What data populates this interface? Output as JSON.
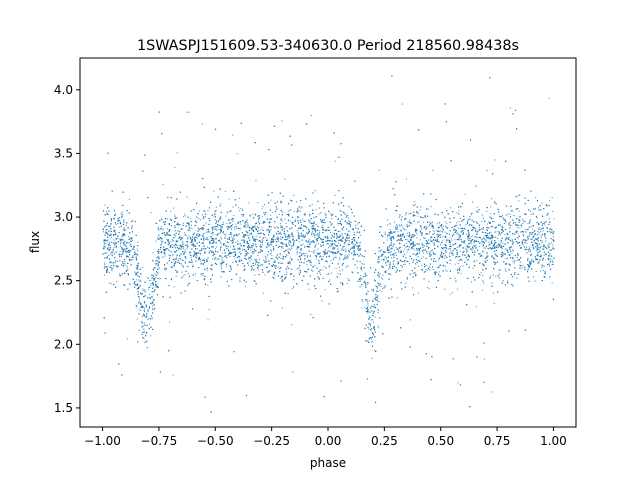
{
  "chart_data": {
    "type": "scatter",
    "title": "1SWASPJ151609.53-340630.0 Period 218560.98438s",
    "xlabel": "phase",
    "ylabel": "flux",
    "xlim": [
      -1.1,
      1.1
    ],
    "ylim": [
      1.35,
      4.25
    ],
    "xticks": [
      -1.0,
      -0.75,
      -0.5,
      -0.25,
      0.0,
      0.25,
      0.5,
      0.75,
      1.0
    ],
    "xtick_labels": [
      "−1.00",
      "−0.75",
      "−0.50",
      "−0.25",
      "0.00",
      "0.25",
      "0.50",
      "0.75",
      "1.00"
    ],
    "yticks": [
      1.5,
      2.0,
      2.5,
      3.0,
      3.5,
      4.0
    ],
    "ytick_labels": [
      "1.5",
      "2.0",
      "2.5",
      "3.0",
      "3.5",
      "4.0"
    ],
    "grid": false,
    "marker_color": "#1f77b4",
    "series": [
      {
        "x_range": [
          -1.0,
          1.0
        ],
        "baseline_flux": 2.8,
        "scatter_sd": 0.15,
        "eclipses": [
          {
            "phase": -0.81,
            "min_flux": 2.2,
            "half_width": 0.06
          },
          {
            "phase": 0.19,
            "min_flux": 2.2,
            "half_width": 0.06
          }
        ]
      }
    ]
  }
}
